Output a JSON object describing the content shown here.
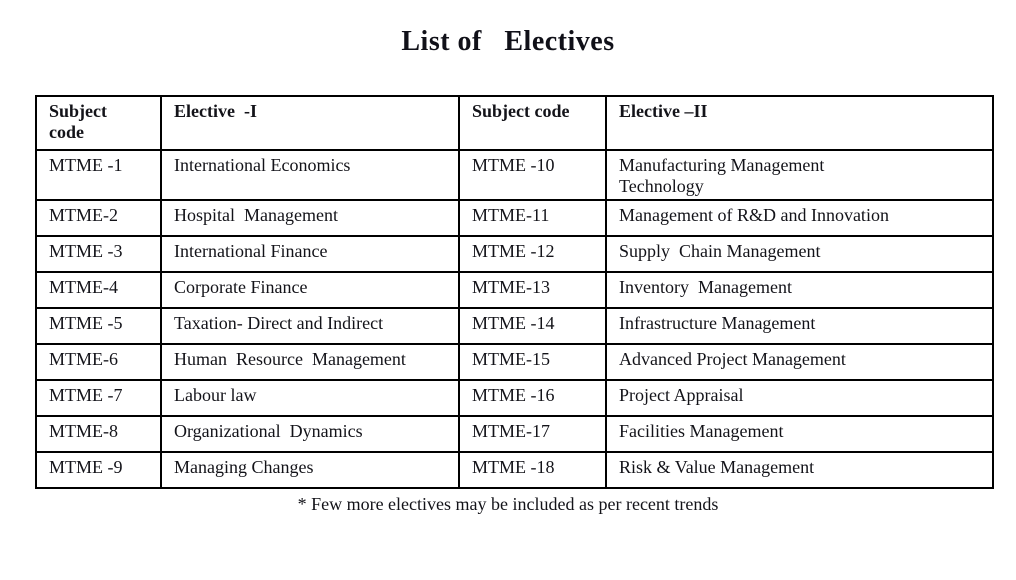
{
  "page": {
    "title": "List of   Electives",
    "footnote": "* Few more electives may be included as per recent trends"
  },
  "table": {
    "headers": [
      "Subject\ncode",
      "Elective  -I",
      "Subject code",
      "Elective –II"
    ],
    "rows": [
      [
        "MTME -1",
        "International Economics",
        "MTME -10",
        "Manufacturing Management\nTechnology"
      ],
      [
        "MTME-2",
        "Hospital  Management",
        "MTME-11",
        "Management of R&D and Innovation"
      ],
      [
        "MTME -3",
        "International Finance",
        "MTME -12",
        "Supply  Chain Management"
      ],
      [
        "MTME-4",
        "Corporate Finance",
        "MTME-13",
        "Inventory  Management"
      ],
      [
        "MTME -5",
        "Taxation- Direct and Indirect",
        "MTME -14",
        "Infrastructure Management"
      ],
      [
        "MTME-6",
        "Human  Resource  Management",
        "MTME-15",
        "Advanced Project Management"
      ],
      [
        "MTME -7",
        "Labour law",
        "MTME -16",
        "Project Appraisal"
      ],
      [
        "MTME-8",
        "Organizational  Dynamics",
        "MTME-17",
        "Facilities Management"
      ],
      [
        "MTME -9",
        "Managing Changes",
        "MTME -18",
        "Risk & Value Management"
      ]
    ]
  }
}
